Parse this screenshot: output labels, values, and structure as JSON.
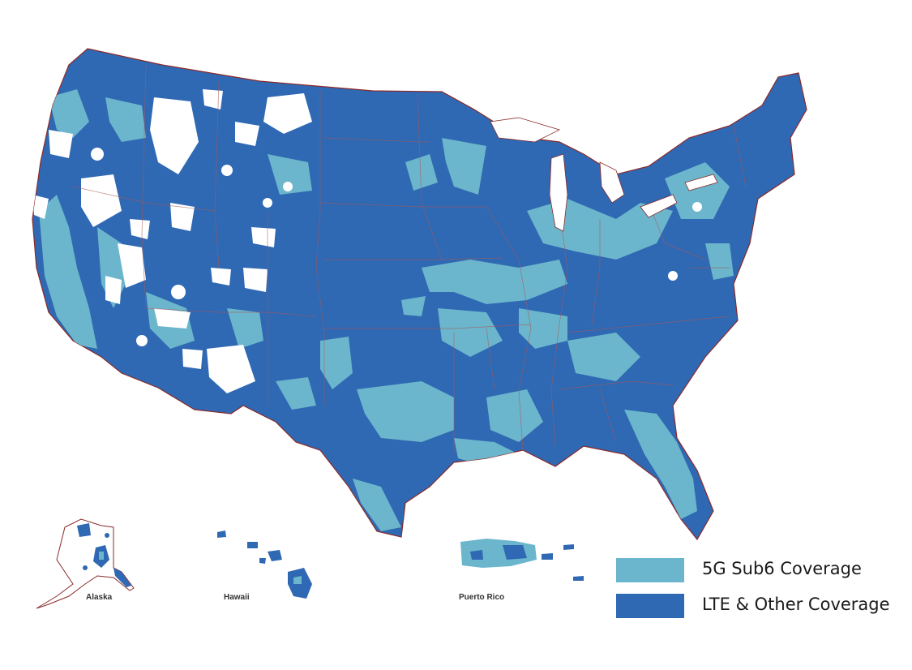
{
  "colors": {
    "lte": "#2f68b3",
    "sub6": "#6bb6cc",
    "border": "#a85a5a",
    "coast": "#8a2a2a",
    "background": "#ffffff"
  },
  "insets": [
    {
      "id": "alaska",
      "label": "Alaska"
    },
    {
      "id": "hawaii",
      "label": "Hawaii"
    },
    {
      "id": "puerto-rico",
      "label": "Puerto Rico"
    }
  ],
  "legend": [
    {
      "id": "sub6",
      "label": "5G Sub6 Coverage",
      "color": "#6bb6cc"
    },
    {
      "id": "lte",
      "label": "LTE & Other Coverage",
      "color": "#2f68b3"
    }
  ]
}
